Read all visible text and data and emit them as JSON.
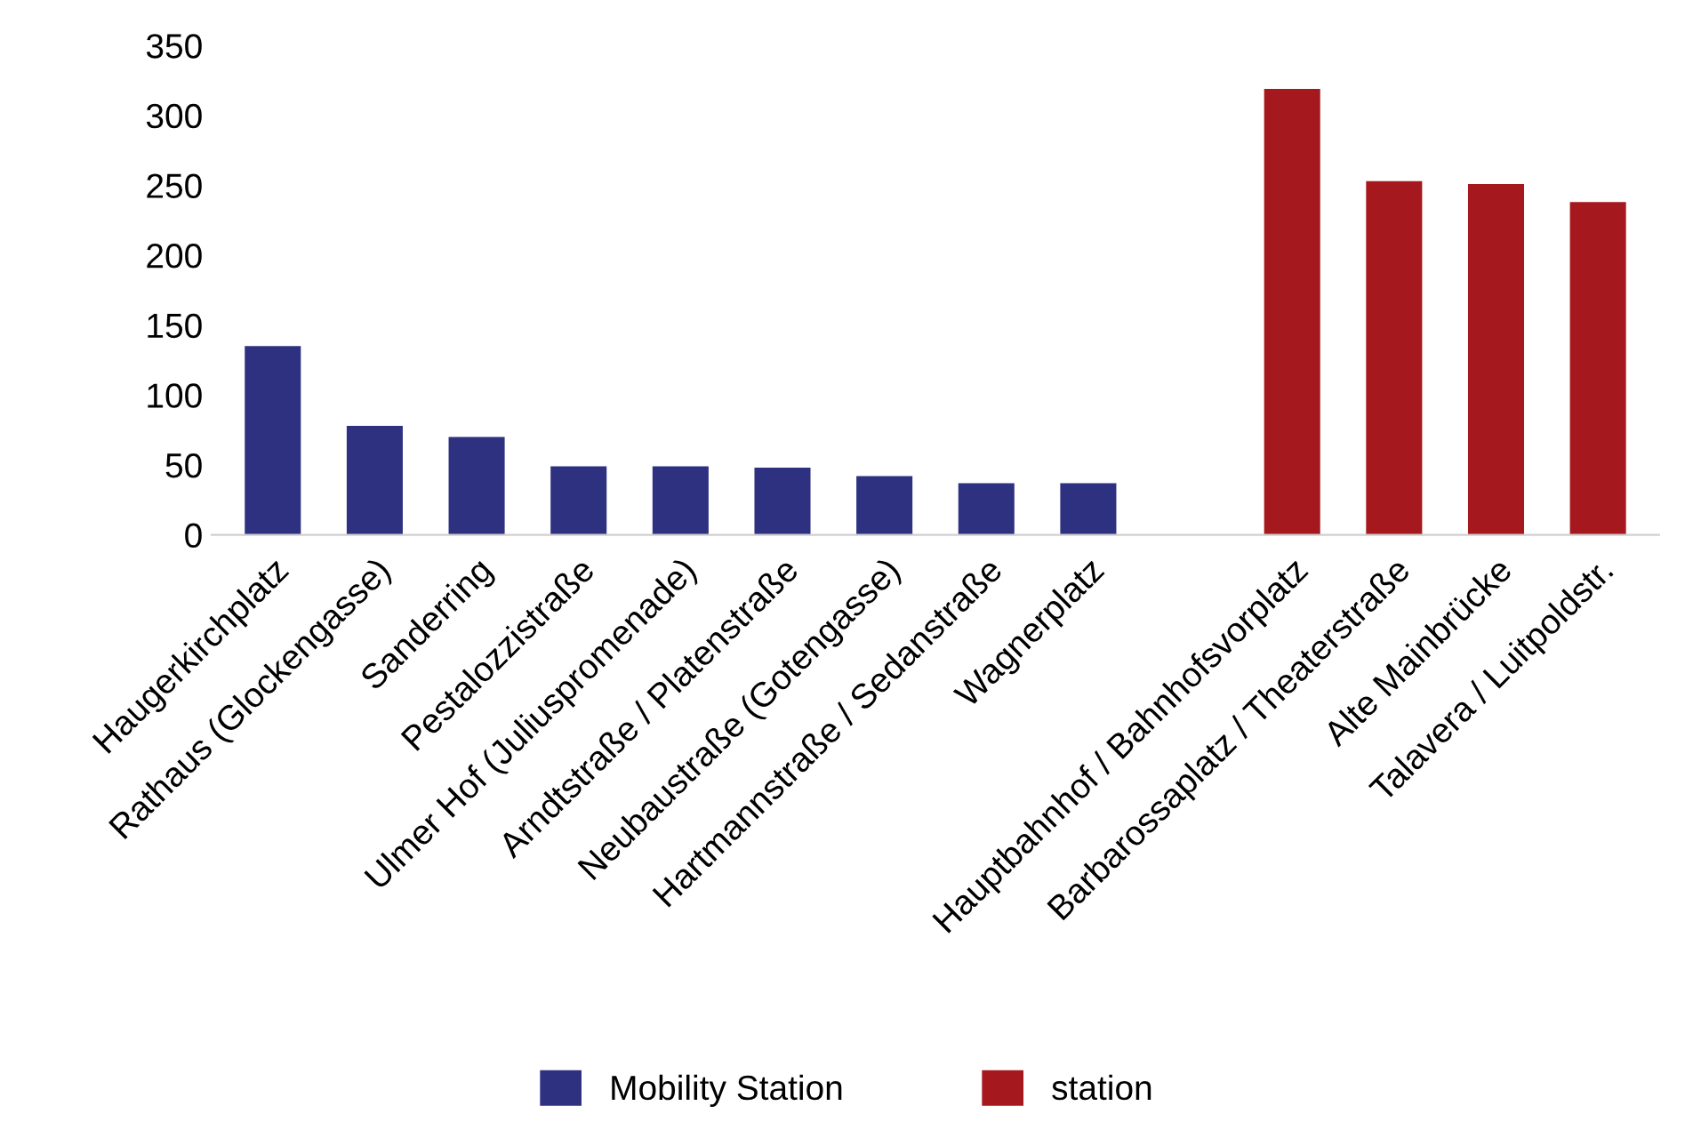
{
  "chart_data": {
    "type": "bar",
    "categories": [
      "Haugerkirchplatz",
      "Rathaus (Glockengasse)",
      "Sanderring",
      "Pestalozzistraße",
      "Ulmer Hof (Juliuspromenade)",
      "Arndtstraße / Platenstraße",
      "Neubaustraße (Gotengasse)",
      "Hartmannstraße / Sedanstraße",
      "Wagnerplatz",
      null,
      "Hauptbahnhof / Bahnhofsvorplatz",
      "Barbarossaplatz / Theaterstraße",
      "Alte Mainbrücke",
      "Talavera / Luitpoldstr."
    ],
    "series": [
      {
        "name": "Mobility Station",
        "color": "#2e3180",
        "values": [
          135,
          78,
          70,
          49,
          49,
          48,
          42,
          37,
          37,
          null,
          null,
          null,
          null,
          null
        ]
      },
      {
        "name": "station",
        "color": "#a5191e",
        "values": [
          null,
          null,
          null,
          null,
          null,
          null,
          null,
          null,
          null,
          null,
          319,
          253,
          251,
          238
        ]
      }
    ],
    "ylim": [
      0,
      350
    ],
    "yticks": [
      0,
      50,
      100,
      150,
      200,
      250,
      300,
      350
    ],
    "grid": false,
    "legend": "bottom"
  }
}
